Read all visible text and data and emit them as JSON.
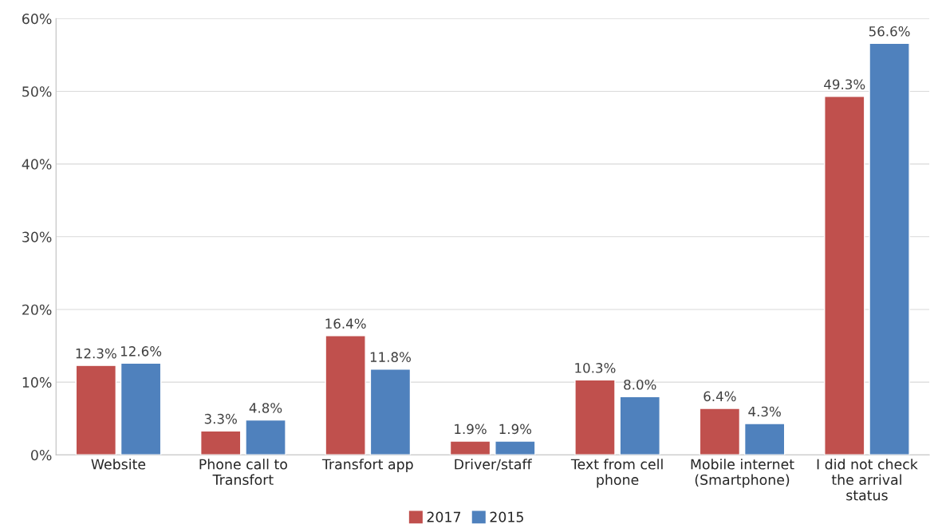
{
  "chart_data": {
    "type": "bar",
    "categories": [
      "Website",
      "Phone call to\nTransfort",
      "Transfort app",
      "Driver/staff",
      "Text from cell\nphone",
      "Mobile internet\n(Smartphone)",
      "I did not check\nthe arrival\nstatus"
    ],
    "series": [
      {
        "name": "2017",
        "color": "#c0504d",
        "values": [
          12.3,
          3.3,
          16.4,
          1.9,
          10.3,
          6.4,
          49.3
        ],
        "value_labels": [
          "12.3%",
          "3.3%",
          "16.4%",
          "1.9%",
          "10.3%",
          "6.4%",
          "49.3%"
        ]
      },
      {
        "name": "2015",
        "color": "#4f81bd",
        "values": [
          12.6,
          4.8,
          11.8,
          1.9,
          8.0,
          4.3,
          56.6
        ],
        "value_labels": [
          "12.6%",
          "4.8%",
          "11.8%",
          "1.9%",
          "8.0%",
          "4.3%",
          "56.6%"
        ]
      }
    ],
    "ylim": [
      0,
      60
    ],
    "yticks": [
      {
        "value": 0,
        "label": "0%"
      },
      {
        "value": 10,
        "label": "10%"
      },
      {
        "value": 20,
        "label": "20%"
      },
      {
        "value": 30,
        "label": "30%"
      },
      {
        "value": 40,
        "label": "40%"
      },
      {
        "value": 50,
        "label": "50%"
      },
      {
        "value": 60,
        "label": "60%"
      }
    ],
    "grid": "y",
    "legend": "bottom"
  }
}
